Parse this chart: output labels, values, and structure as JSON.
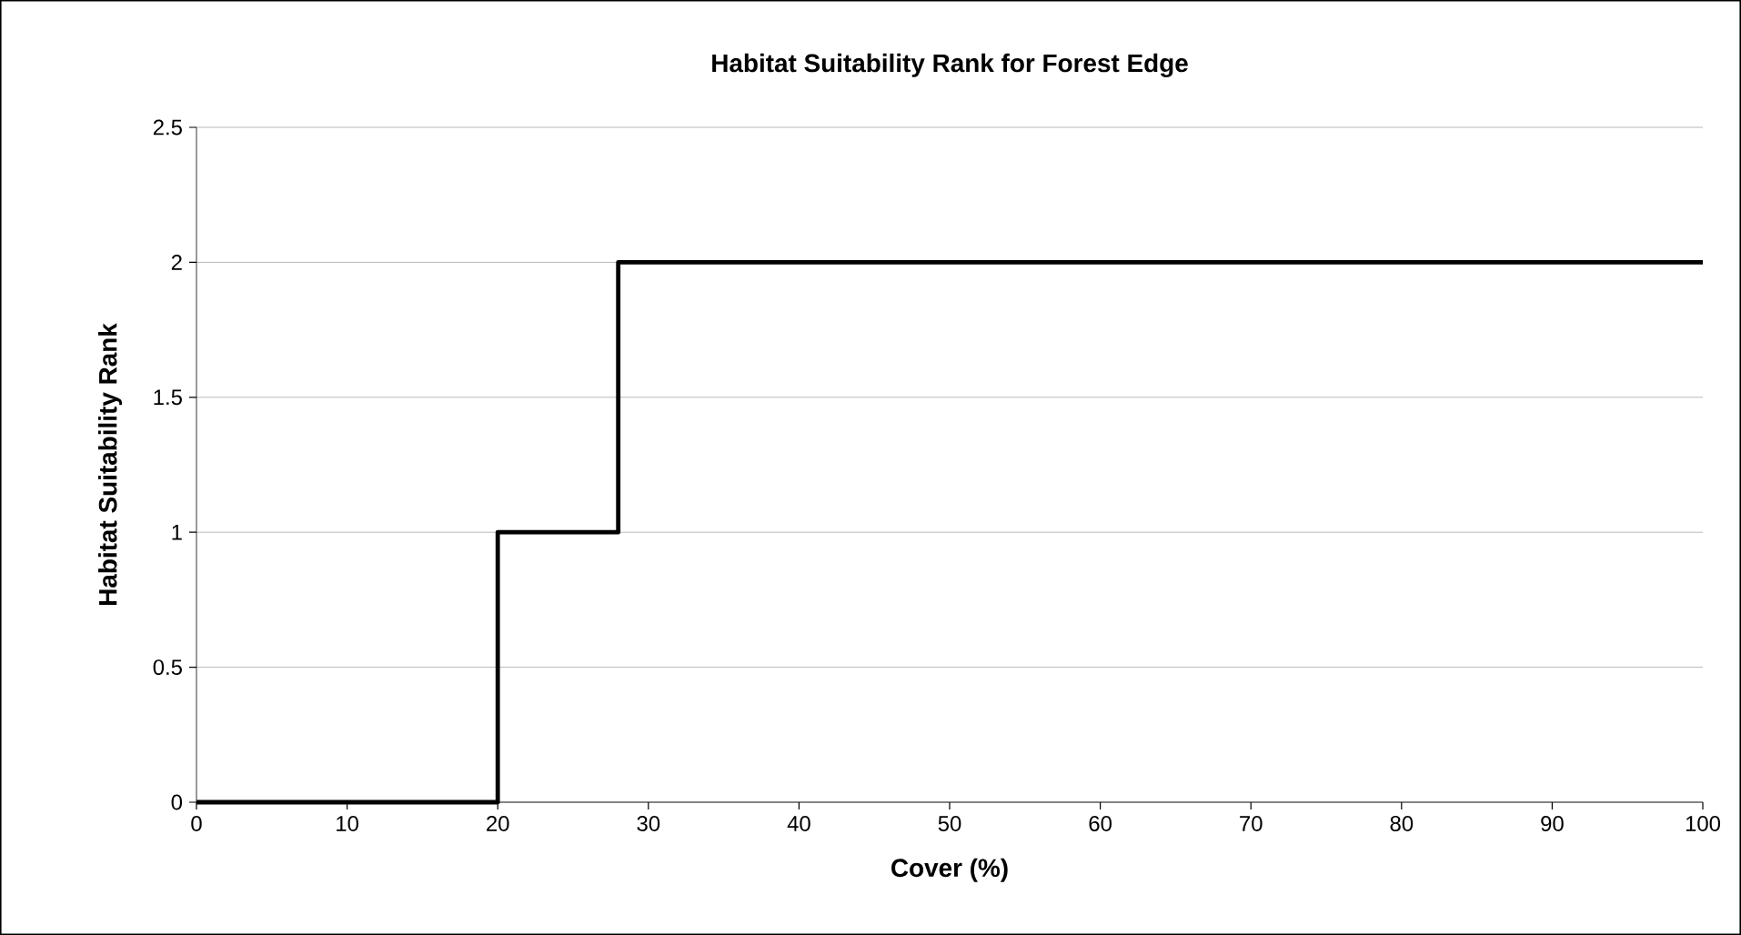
{
  "chart_data": {
    "type": "line",
    "title": "Habitat Suitability Rank for Forest Edge",
    "xlabel": "Cover (%)",
    "ylabel": "Habitat Suitability Rank",
    "x": [
      0,
      20,
      20,
      28,
      28,
      100
    ],
    "series": [
      {
        "color": "#000000",
        "values": [
          0,
          0,
          1,
          1,
          2,
          2
        ]
      }
    ],
    "xlim": [
      0,
      100
    ],
    "xticks": [
      0,
      10,
      20,
      30,
      40,
      50,
      60,
      70,
      80,
      90,
      100
    ],
    "ylim": [
      0,
      2.5
    ],
    "yticks": [
      0,
      0.5,
      1,
      1.5,
      2,
      2.5
    ],
    "grid": "y",
    "marker": "none",
    "line_style": "solid"
  }
}
